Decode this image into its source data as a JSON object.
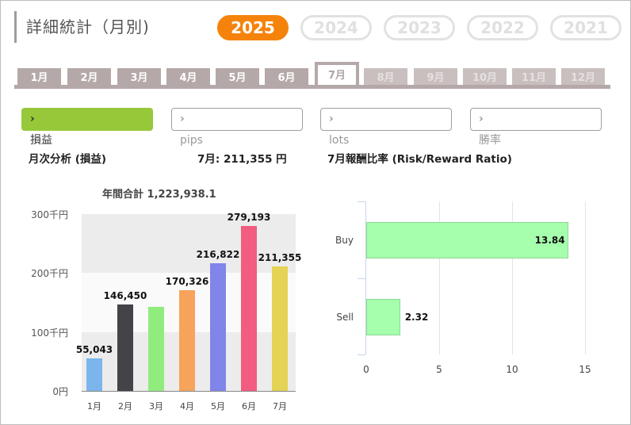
{
  "header": {
    "title": "詳細統計（月別)"
  },
  "years": [
    "2025",
    "2024",
    "2023",
    "2022",
    "2021"
  ],
  "active_year": "2025",
  "months": [
    "1月",
    "2月",
    "3月",
    "4月",
    "5月",
    "6月",
    "7月",
    "8月",
    "9月",
    "10月",
    "11月",
    "12月"
  ],
  "active_month": "7月",
  "subtabs": [
    "損益",
    "pips",
    "lots",
    "勝率"
  ],
  "active_subtab": "損益",
  "left_heading": "月次分析 (損益)",
  "month_summary": "7月: 211,355 円",
  "right_heading": "7月報酬比率 (Risk/Reward Ratio)",
  "colors": {
    "accent": "#f5830b",
    "subtab_active": "#97c83a",
    "tab": "#b5a8a8"
  },
  "chart_data": [
    {
      "type": "bar",
      "title": "年間合計 1,223,938.1",
      "categories": [
        "1月",
        "2月",
        "3月",
        "4月",
        "5月",
        "6月",
        "7月"
      ],
      "values": [
        55043,
        146450,
        143000,
        170326,
        216822,
        279193,
        211355
      ],
      "value_labels": [
        "55,043",
        "146,450",
        "",
        "170,326",
        "216,822",
        "279,193",
        "211,355"
      ],
      "colors": [
        "#7cb5ec",
        "#434348",
        "#90ed7d",
        "#f7a35c",
        "#8085e9",
        "#f15c80",
        "#e4d354"
      ],
      "ytick_labels": [
        "0円",
        "100千円",
        "200千円",
        "300千円"
      ],
      "ylim": [
        0,
        300000
      ]
    },
    {
      "type": "bar",
      "orientation": "horizontal",
      "categories": [
        "Buy",
        "Sell"
      ],
      "values": [
        13.84,
        2.32
      ],
      "value_labels": [
        "13.84",
        "2.32"
      ],
      "xticks": [
        "0",
        "5",
        "10",
        "15"
      ],
      "xlim": [
        0,
        15
      ]
    }
  ]
}
